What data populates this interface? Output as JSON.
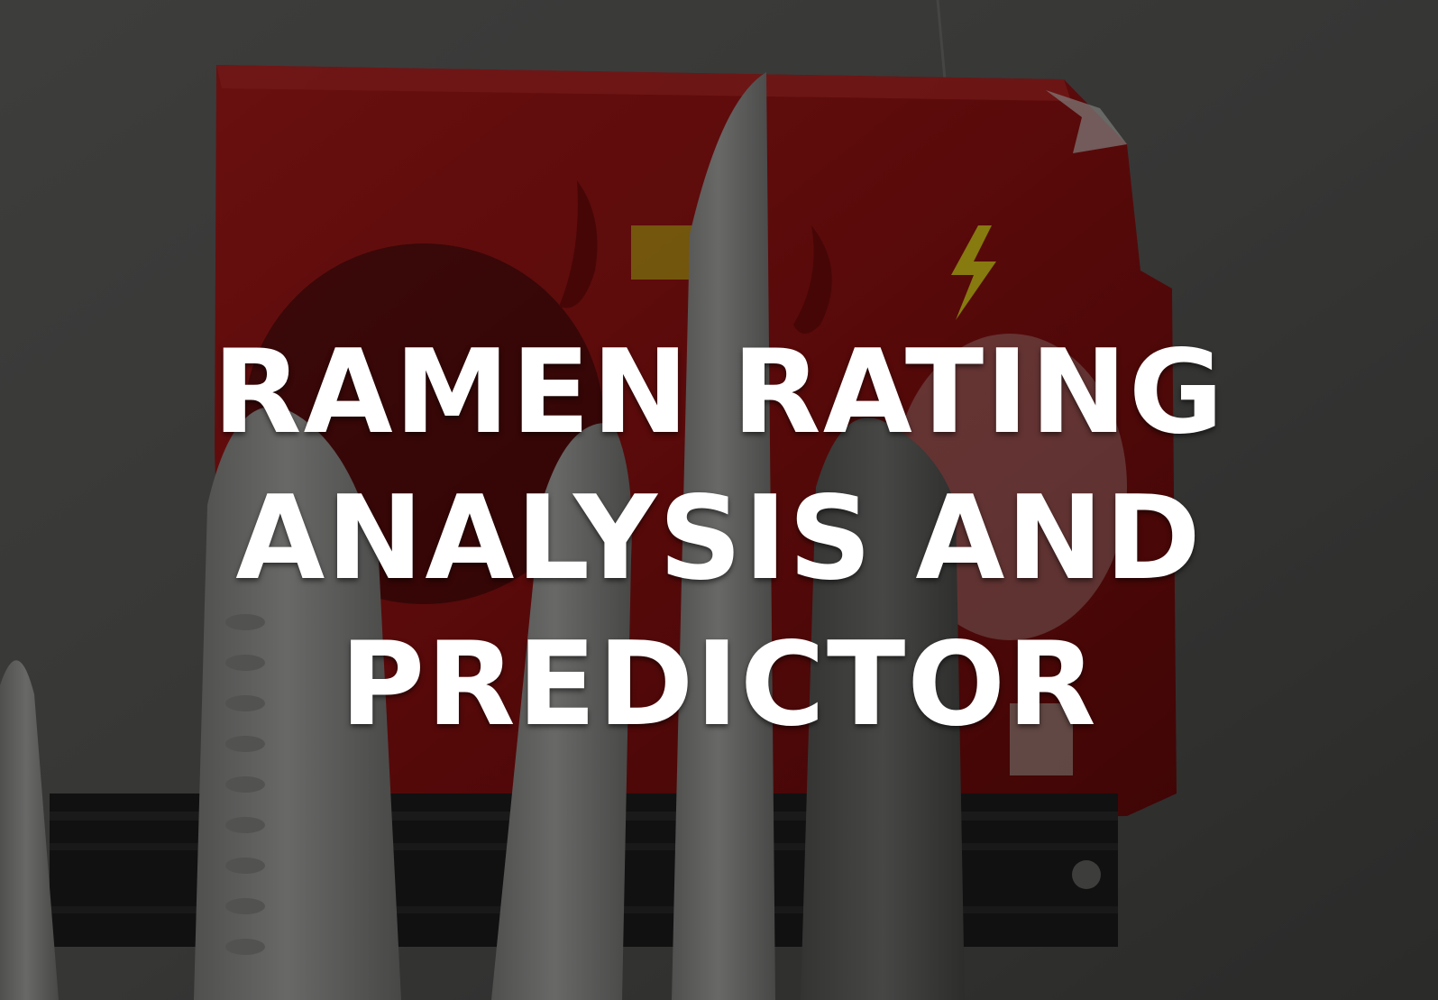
{
  "hero": {
    "title_lines": [
      "RAMEN RATING",
      "ANALYSIS AND",
      "PREDICTOR"
    ]
  },
  "background": {
    "subject": "red ramen noodle package behind kitchen knives on a magnetic strip",
    "wall_color": "#5e5e5c",
    "package_color": "#a21616",
    "package_shadow_color": "#5c0808",
    "accent_yellow": "#e8d21a",
    "blade_color": "#a6a6a4",
    "strip_color": "#1e1e1e",
    "darken_overlay": "rgba(0,0,0,0.42)"
  }
}
